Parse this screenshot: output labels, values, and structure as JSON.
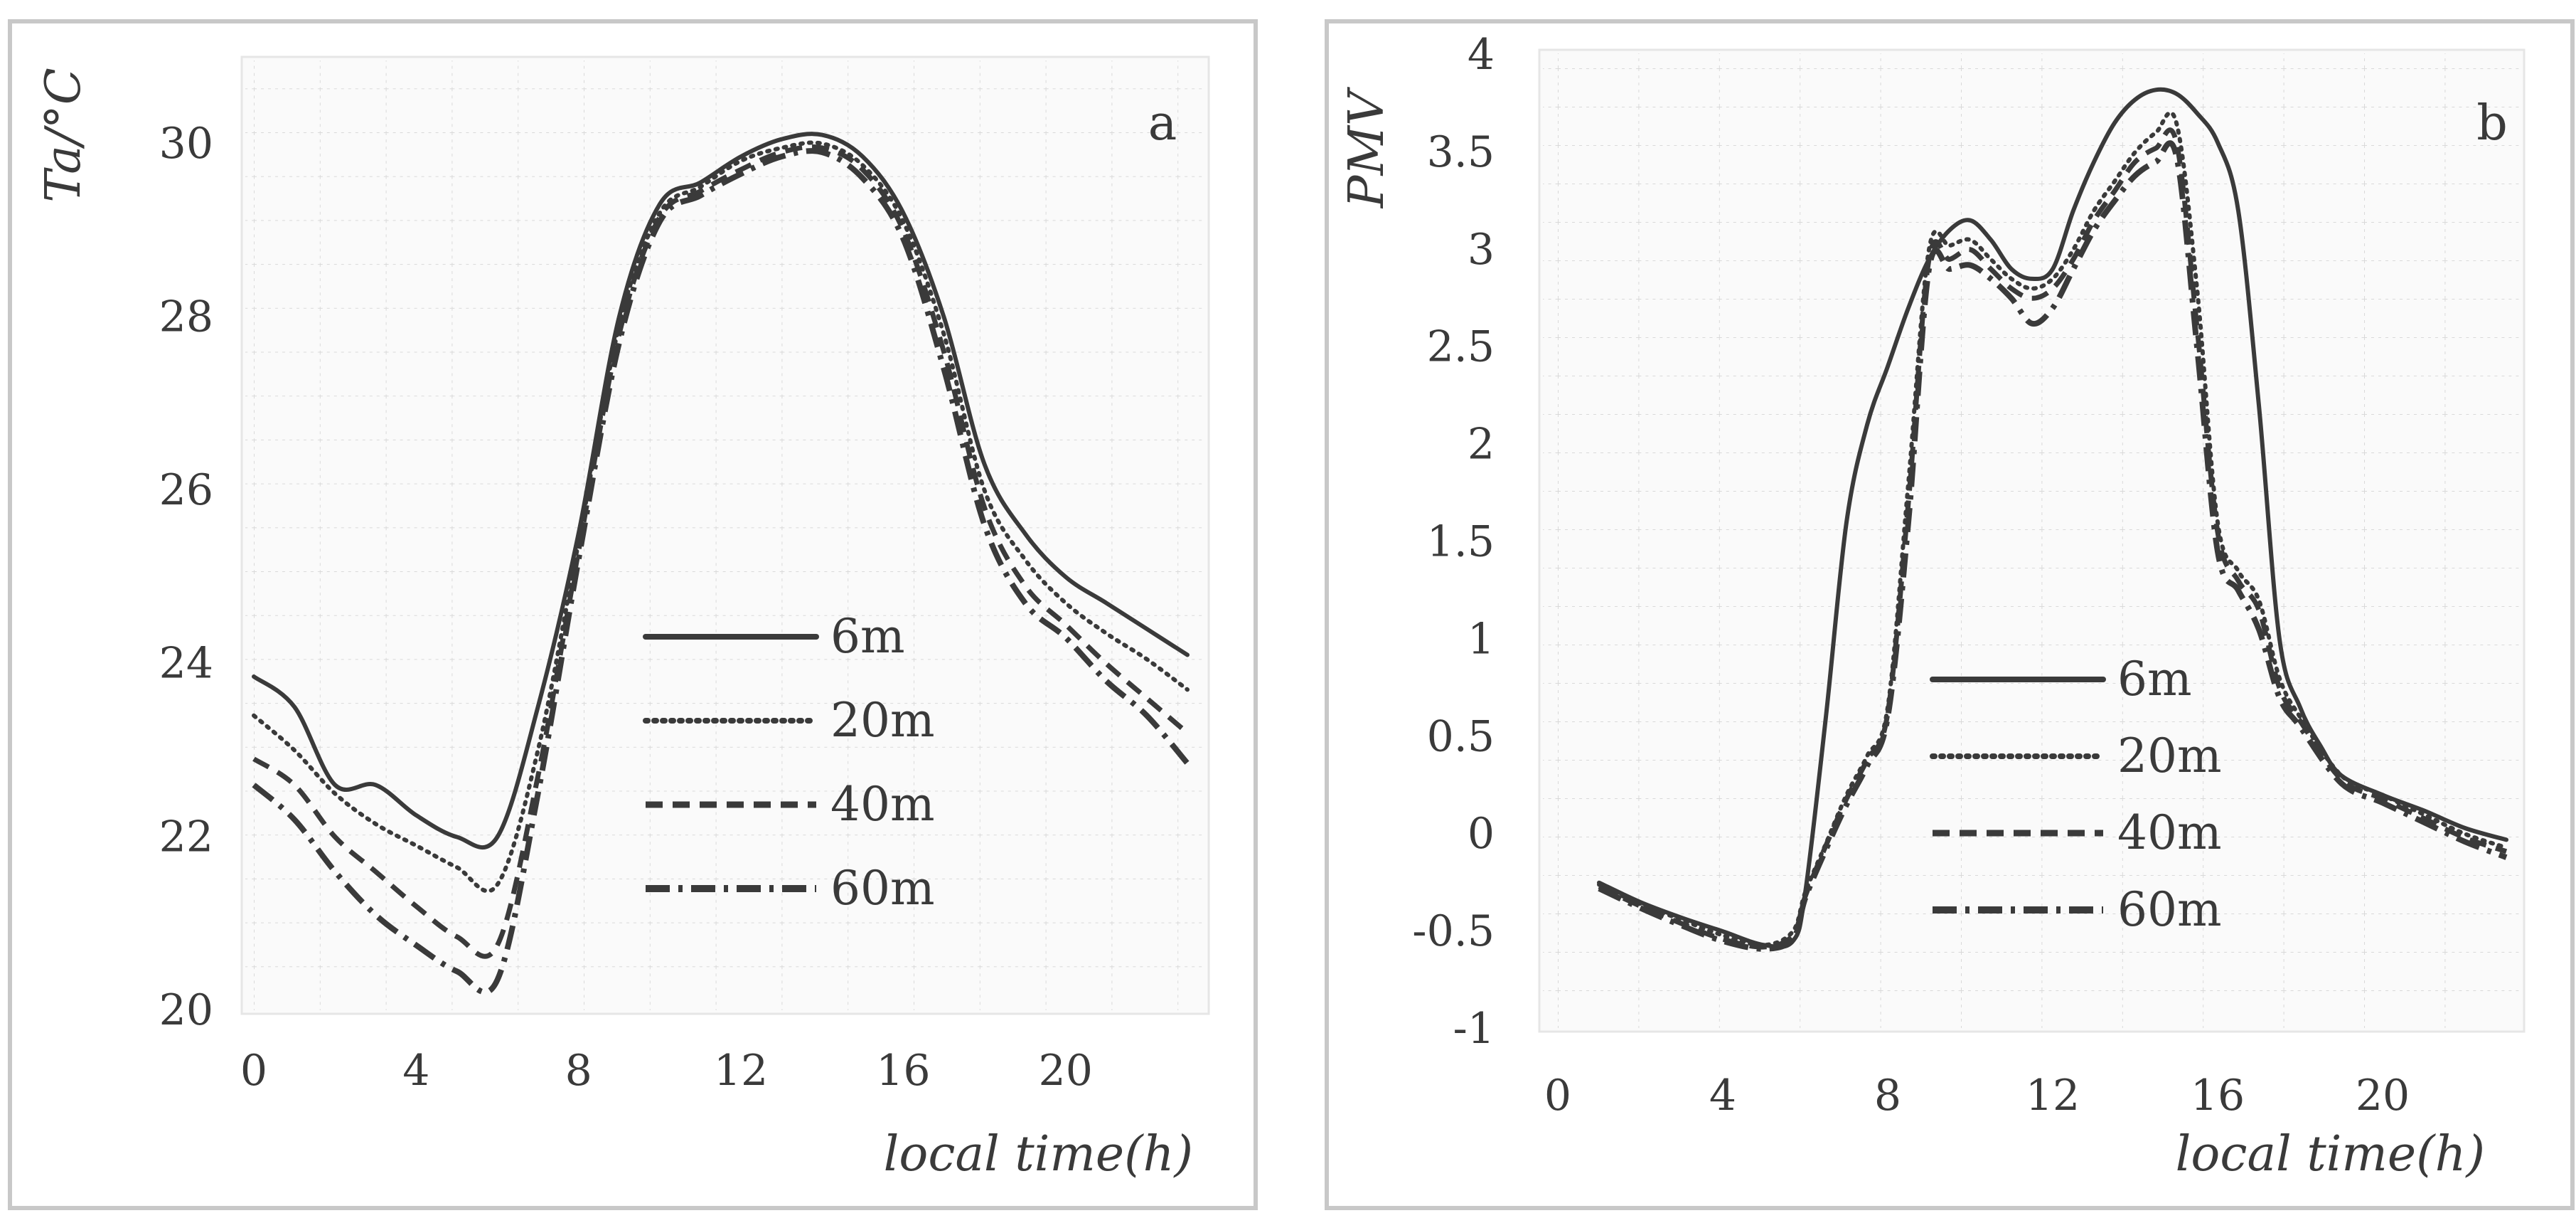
{
  "chart_data": [
    {
      "type": "line",
      "panel_label": "a",
      "ylabel": "Ta/°C",
      "xlabel": "local time(h)",
      "xlim": [
        0,
        23
      ],
      "ylim": [
        20,
        31
      ],
      "x_ticks": [
        "0",
        "4",
        "8",
        "12",
        "16",
        "20"
      ],
      "y_ticks": [
        "20",
        "22",
        "24",
        "26",
        "28",
        "30"
      ],
      "legend_location": "center-right",
      "series": [
        {
          "name": "6m",
          "style": "solid",
          "points": [
            [
              0,
              23.85
            ],
            [
              1,
              23.5
            ],
            [
              2,
              22.6
            ],
            [
              3,
              22.6
            ],
            [
              4,
              22.25
            ],
            [
              5,
              22.0
            ],
            [
              6,
              22.0
            ],
            [
              7,
              23.5
            ],
            [
              8,
              25.5
            ],
            [
              9,
              28.0
            ],
            [
              10,
              29.3
            ],
            [
              11,
              29.55
            ],
            [
              12,
              29.85
            ],
            [
              13,
              30.05
            ],
            [
              14,
              30.1
            ],
            [
              15,
              29.85
            ],
            [
              16,
              29.2
            ],
            [
              17,
              28.0
            ],
            [
              18,
              26.3
            ],
            [
              19,
              25.5
            ],
            [
              20,
              25.0
            ],
            [
              21,
              24.7
            ],
            [
              22,
              24.4
            ],
            [
              23,
              24.1
            ]
          ]
        },
        {
          "name": "20m",
          "style": "dotted",
          "points": [
            [
              0,
              23.4
            ],
            [
              1,
              23.0
            ],
            [
              2,
              22.5
            ],
            [
              3,
              22.15
            ],
            [
              4,
              21.9
            ],
            [
              5,
              21.65
            ],
            [
              6,
              21.45
            ],
            [
              7,
              23.0
            ],
            [
              8,
              25.4
            ],
            [
              9,
              27.9
            ],
            [
              10,
              29.2
            ],
            [
              11,
              29.5
            ],
            [
              12,
              29.8
            ],
            [
              13,
              29.95
            ],
            [
              14,
              30.0
            ],
            [
              15,
              29.75
            ],
            [
              16,
              29.1
            ],
            [
              17,
              27.8
            ],
            [
              18,
              26.0
            ],
            [
              19,
              25.2
            ],
            [
              20,
              24.7
            ],
            [
              21,
              24.35
            ],
            [
              22,
              24.05
            ],
            [
              23,
              23.7
            ]
          ]
        },
        {
          "name": "40m",
          "style": "dashed",
          "points": [
            [
              0,
              22.9
            ],
            [
              1,
              22.6
            ],
            [
              2,
              22.0
            ],
            [
              3,
              21.6
            ],
            [
              4,
              21.2
            ],
            [
              5,
              20.85
            ],
            [
              6,
              20.75
            ],
            [
              7,
              22.7
            ],
            [
              8,
              25.3
            ],
            [
              9,
              27.8
            ],
            [
              10,
              29.15
            ],
            [
              11,
              29.45
            ],
            [
              12,
              29.7
            ],
            [
              13,
              29.9
            ],
            [
              14,
              29.95
            ],
            [
              15,
              29.7
            ],
            [
              16,
              29.0
            ],
            [
              17,
              27.6
            ],
            [
              18,
              25.8
            ],
            [
              19,
              24.9
            ],
            [
              20,
              24.45
            ],
            [
              21,
              24.0
            ],
            [
              22,
              23.6
            ],
            [
              23,
              23.2
            ]
          ]
        },
        {
          "name": "60m",
          "style": "dashdot",
          "points": [
            [
              0,
              22.6
            ],
            [
              1,
              22.2
            ],
            [
              2,
              21.6
            ],
            [
              3,
              21.1
            ],
            [
              4,
              20.75
            ],
            [
              5,
              20.45
            ],
            [
              6,
              20.35
            ],
            [
              7,
              22.5
            ],
            [
              8,
              25.2
            ],
            [
              9,
              27.7
            ],
            [
              10,
              29.1
            ],
            [
              11,
              29.4
            ],
            [
              12,
              29.65
            ],
            [
              13,
              29.85
            ],
            [
              14,
              29.9
            ],
            [
              15,
              29.6
            ],
            [
              16,
              28.9
            ],
            [
              17,
              27.4
            ],
            [
              18,
              25.6
            ],
            [
              19,
              24.7
            ],
            [
              20,
              24.3
            ],
            [
              21,
              23.8
            ],
            [
              22,
              23.4
            ],
            [
              23,
              22.85
            ]
          ]
        }
      ]
    },
    {
      "type": "line",
      "panel_label": "b",
      "ylabel": "PMV",
      "xlabel": "local time(h)",
      "xlim": [
        0,
        23
      ],
      "ylim": [
        -1,
        4
      ],
      "x_ticks": [
        "0",
        "4",
        "8",
        "12",
        "16",
        "20"
      ],
      "y_ticks": [
        "-1",
        "-0.5",
        "0",
        "0.5",
        "1",
        "1.5",
        "2",
        "2.5",
        "3",
        "3.5",
        "4"
      ],
      "legend_location": "center",
      "series": [
        {
          "name": "6m",
          "style": "solid",
          "points": [
            [
              1,
              -0.25
            ],
            [
              2,
              -0.35
            ],
            [
              3,
              -0.43
            ],
            [
              4,
              -0.5
            ],
            [
              5,
              -0.57
            ],
            [
              5.7,
              -0.55
            ],
            [
              6,
              -0.3
            ],
            [
              6.5,
              0.6
            ],
            [
              7,
              1.6
            ],
            [
              7.5,
              2.1
            ],
            [
              8,
              2.4
            ],
            [
              8.5,
              2.7
            ],
            [
              9,
              2.95
            ],
            [
              9.5,
              3.1
            ],
            [
              10,
              3.15
            ],
            [
              10.5,
              3.05
            ],
            [
              11,
              2.9
            ],
            [
              11.5,
              2.85
            ],
            [
              12,
              2.9
            ],
            [
              12.5,
              3.2
            ],
            [
              13,
              3.45
            ],
            [
              13.5,
              3.65
            ],
            [
              14,
              3.77
            ],
            [
              14.5,
              3.82
            ],
            [
              15,
              3.8
            ],
            [
              15.5,
              3.7
            ],
            [
              16,
              3.55
            ],
            [
              16.5,
              3.2
            ],
            [
              17,
              2.2
            ],
            [
              17.5,
              1.0
            ],
            [
              18,
              0.65
            ],
            [
              18.5,
              0.45
            ],
            [
              19,
              0.3
            ],
            [
              20,
              0.2
            ],
            [
              21,
              0.12
            ],
            [
              22,
              0.03
            ],
            [
              23,
              -0.03
            ]
          ]
        },
        {
          "name": "20m",
          "style": "dotted",
          "points": [
            [
              1,
              -0.26
            ],
            [
              2,
              -0.36
            ],
            [
              3,
              -0.44
            ],
            [
              4,
              -0.52
            ],
            [
              5,
              -0.57
            ],
            [
              5.7,
              -0.5
            ],
            [
              6,
              -0.3
            ],
            [
              6.5,
              -0.05
            ],
            [
              7,
              0.2
            ],
            [
              7.5,
              0.4
            ],
            [
              8,
              0.65
            ],
            [
              8.5,
              1.8
            ],
            [
              9,
              3.0
            ],
            [
              9.5,
              3.02
            ],
            [
              10,
              3.05
            ],
            [
              10.5,
              2.95
            ],
            [
              11,
              2.85
            ],
            [
              11.5,
              2.8
            ],
            [
              12,
              2.85
            ],
            [
              12.5,
              3.0
            ],
            [
              13,
              3.2
            ],
            [
              13.5,
              3.35
            ],
            [
              14,
              3.5
            ],
            [
              14.5,
              3.6
            ],
            [
              15,
              3.65
            ],
            [
              15.5,
              2.8
            ],
            [
              16,
              1.6
            ],
            [
              16.5,
              1.35
            ],
            [
              17,
              1.2
            ],
            [
              17.5,
              0.8
            ],
            [
              18,
              0.6
            ],
            [
              19,
              0.3
            ],
            [
              20,
              0.2
            ],
            [
              21,
              0.1
            ],
            [
              22,
              0.0
            ],
            [
              23,
              -0.07
            ]
          ]
        },
        {
          "name": "40m",
          "style": "dashed",
          "points": [
            [
              1,
              -0.27
            ],
            [
              2,
              -0.37
            ],
            [
              3,
              -0.46
            ],
            [
              4,
              -0.54
            ],
            [
              5,
              -0.58
            ],
            [
              5.7,
              -0.52
            ],
            [
              6,
              -0.32
            ],
            [
              6.5,
              -0.06
            ],
            [
              7,
              0.18
            ],
            [
              7.5,
              0.38
            ],
            [
              8,
              0.62
            ],
            [
              8.5,
              1.7
            ],
            [
              9,
              2.95
            ],
            [
              9.5,
              2.95
            ],
            [
              10,
              3.0
            ],
            [
              10.5,
              2.9
            ],
            [
              11,
              2.8
            ],
            [
              11.5,
              2.75
            ],
            [
              12,
              2.8
            ],
            [
              12.5,
              2.95
            ],
            [
              13,
              3.15
            ],
            [
              13.5,
              3.3
            ],
            [
              14,
              3.45
            ],
            [
              14.5,
              3.52
            ],
            [
              15,
              3.55
            ],
            [
              15.5,
              2.6
            ],
            [
              16,
              1.55
            ],
            [
              16.5,
              1.3
            ],
            [
              17,
              1.15
            ],
            [
              17.5,
              0.75
            ],
            [
              18,
              0.58
            ],
            [
              19,
              0.28
            ],
            [
              20,
              0.18
            ],
            [
              21,
              0.08
            ],
            [
              22,
              -0.02
            ],
            [
              23,
              -0.09
            ]
          ]
        },
        {
          "name": "60m",
          "style": "dashdot",
          "points": [
            [
              1,
              -0.28
            ],
            [
              2,
              -0.38
            ],
            [
              3,
              -0.47
            ],
            [
              4,
              -0.55
            ],
            [
              5,
              -0.59
            ],
            [
              5.7,
              -0.54
            ],
            [
              6,
              -0.33
            ],
            [
              6.5,
              -0.08
            ],
            [
              7,
              0.15
            ],
            [
              7.5,
              0.35
            ],
            [
              8,
              0.6
            ],
            [
              8.5,
              1.6
            ],
            [
              9,
              2.9
            ],
            [
              9.5,
              2.9
            ],
            [
              10,
              2.92
            ],
            [
              10.5,
              2.85
            ],
            [
              11,
              2.75
            ],
            [
              11.5,
              2.62
            ],
            [
              12,
              2.7
            ],
            [
              12.5,
              2.9
            ],
            [
              13,
              3.1
            ],
            [
              13.5,
              3.25
            ],
            [
              14,
              3.38
            ],
            [
              14.5,
              3.45
            ],
            [
              15,
              3.48
            ],
            [
              15.5,
              2.5
            ],
            [
              16,
              1.45
            ],
            [
              16.5,
              1.25
            ],
            [
              17,
              1.05
            ],
            [
              17.5,
              0.7
            ],
            [
              18,
              0.55
            ],
            [
              19,
              0.26
            ],
            [
              20,
              0.16
            ],
            [
              21,
              0.06
            ],
            [
              22,
              -0.04
            ],
            [
              23,
              -0.12
            ]
          ]
        }
      ]
    }
  ]
}
